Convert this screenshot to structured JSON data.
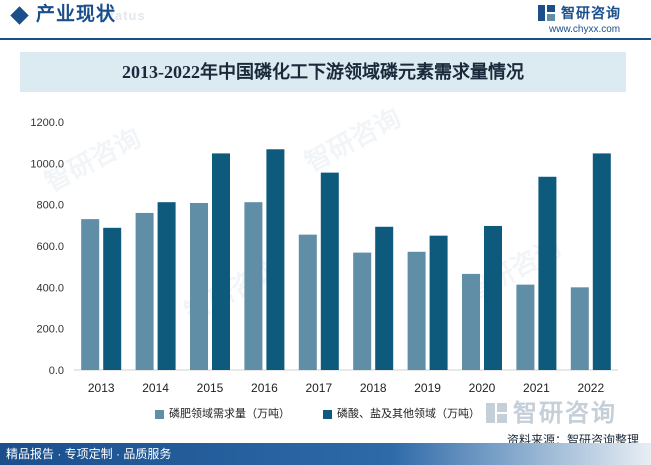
{
  "header": {
    "section_title": "产业现状",
    "section_subtitle": "Status",
    "brand_name": "智研咨询",
    "brand_url": "www.chyxx.com"
  },
  "chart_data": {
    "type": "bar",
    "title": "2013-2022年中国磷化工下游领域磷元素需求量情况",
    "categories": [
      "2013",
      "2014",
      "2015",
      "2016",
      "2017",
      "2018",
      "2019",
      "2020",
      "2021",
      "2022"
    ],
    "series": [
      {
        "name": "磷肥领域需求量（万吨）",
        "color": "#5f8ea6",
        "values": [
          730,
          760,
          808,
          812,
          655,
          568,
          572,
          465,
          413,
          400
        ]
      },
      {
        "name": "磷酸、盐及其他领域（万吨）",
        "color": "#0d5a7c",
        "values": [
          688,
          812,
          1048,
          1068,
          955,
          693,
          650,
          697,
          935,
          1048
        ]
      }
    ],
    "ylim": [
      0,
      1200
    ],
    "yticks": [
      "0.0",
      "200.0",
      "400.0",
      "600.0",
      "800.0",
      "1000.0",
      "1200.0"
    ],
    "xlabel": "",
    "ylabel": "",
    "grid": false,
    "legend": "bottom"
  },
  "source": "资料来源：智研咨询整理",
  "footer": {
    "text": "精品报告 · 专项定制 · 品质服务"
  },
  "watermark": "智研咨询"
}
